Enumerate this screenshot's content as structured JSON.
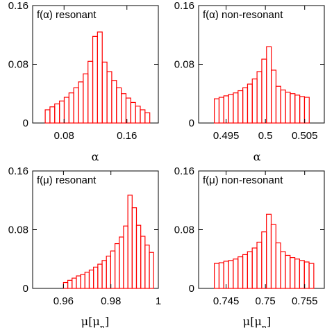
{
  "chart_data": [
    {
      "type": "bar",
      "title": "f(α) resonant",
      "xlabel": "α",
      "xlim": [
        0.04,
        0.2
      ],
      "ylim": [
        0,
        0.16
      ],
      "xticks": [
        {
          "value": 0.08,
          "label": "0.08"
        },
        {
          "value": 0.16,
          "label": "0.16"
        }
      ],
      "yticks": [
        {
          "value": 0,
          "label": "0"
        },
        {
          "value": 0.08,
          "label": "0.08"
        },
        {
          "value": 0.16,
          "label": "0.16"
        }
      ],
      "bin_start": 0.056,
      "bin_width": 0.00605,
      "values": [
        0.018,
        0.022,
        0.026,
        0.03,
        0.035,
        0.041,
        0.048,
        0.056,
        0.067,
        0.084,
        0.118,
        0.124,
        0.083,
        0.07,
        0.058,
        0.048,
        0.04,
        0.034,
        0.028,
        0.023,
        0.018,
        0.014
      ]
    },
    {
      "type": "bar",
      "title": "f(α) non-resonant",
      "xlabel": "α",
      "xlim": [
        0.4915,
        0.5075
      ],
      "ylim": [
        0,
        0.16
      ],
      "xticks": [
        {
          "value": 0.495,
          "label": "0.495"
        },
        {
          "value": 0.5,
          "label": "0.5"
        },
        {
          "value": 0.505,
          "label": "0.505"
        }
      ],
      "yticks": [
        {
          "value": 0,
          "label": "0"
        },
        {
          "value": 0.08,
          "label": "0.08"
        },
        {
          "value": 0.16,
          "label": "0.16"
        }
      ],
      "bin_start": 0.4935,
      "bin_width": 0.000604,
      "values": [
        0.033,
        0.035,
        0.037,
        0.039,
        0.041,
        0.044,
        0.048,
        0.053,
        0.06,
        0.07,
        0.087,
        0.104,
        0.072,
        0.05,
        0.045,
        0.042,
        0.04,
        0.038,
        0.036,
        0.035
      ]
    },
    {
      "type": "bar",
      "title": "f(μ) resonant",
      "xlabel": "μ[μn]",
      "xlim": [
        0.947,
        1.0
      ],
      "ylim": [
        0,
        0.16
      ],
      "xticks": [
        {
          "value": 0.96,
          "label": "0.96"
        },
        {
          "value": 0.98,
          "label": "0.98"
        },
        {
          "value": 1.0,
          "label": "1"
        }
      ],
      "yticks": [
        {
          "value": 0,
          "label": "0"
        },
        {
          "value": 0.08,
          "label": "0.08"
        },
        {
          "value": 0.16,
          "label": "0.16"
        }
      ],
      "bin_start": 0.96,
      "bin_width": 0.00181,
      "values": [
        0.008,
        0.011,
        0.014,
        0.017,
        0.019,
        0.022,
        0.025,
        0.029,
        0.033,
        0.038,
        0.044,
        0.051,
        0.061,
        0.07,
        0.085,
        0.127,
        0.11,
        0.086,
        0.071,
        0.059,
        0.049
      ]
    },
    {
      "type": "bar",
      "title": "f(μ) non-resonant",
      "xlabel": "μ[μn]",
      "xlim": [
        0.7415,
        0.7575
      ],
      "ylim": [
        0,
        0.16
      ],
      "xticks": [
        {
          "value": 0.745,
          "label": "0.745"
        },
        {
          "value": 0.75,
          "label": "0.75"
        },
        {
          "value": 0.755,
          "label": "0.755"
        }
      ],
      "yticks": [
        {
          "value": 0,
          "label": "0"
        },
        {
          "value": 0.08,
          "label": "0.08"
        },
        {
          "value": 0.16,
          "label": "0.16"
        }
      ],
      "bin_start": 0.7435,
      "bin_width": 0.000603,
      "values": [
        0.034,
        0.035,
        0.037,
        0.038,
        0.04,
        0.043,
        0.046,
        0.05,
        0.055,
        0.063,
        0.077,
        0.101,
        0.087,
        0.062,
        0.05,
        0.045,
        0.042,
        0.04,
        0.038,
        0.036,
        0.034
      ]
    }
  ],
  "colors": {
    "bars": "#ff0000",
    "axes": "#000000",
    "background": "#ffffff"
  }
}
